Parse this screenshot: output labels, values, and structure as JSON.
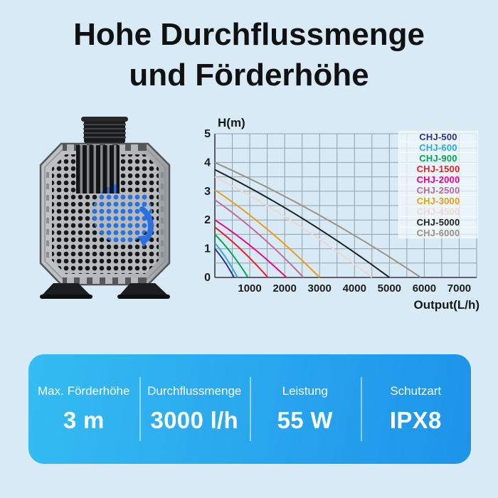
{
  "background_color": "#d7eaf5",
  "title": {
    "line1": "Hohe Durchflussmenge",
    "line2": "und Förderhöhe"
  },
  "pump": {
    "description": "submersible-pump-with-suction-feet",
    "body_color": "#b5b8ba",
    "hole_color": "#17181a",
    "impeller_color": "#2374e8",
    "arrow_color": "#2b6fe0"
  },
  "chart_data": {
    "type": "line",
    "title": "",
    "ylabel": "H(m)",
    "xlabel": "Output(L/h)",
    "xlim": [
      0,
      7500
    ],
    "ylim": [
      0,
      5
    ],
    "x_ticks": [
      1000,
      2000,
      3000,
      4000,
      5000,
      6000,
      7000
    ],
    "y_ticks": [
      0,
      1,
      2,
      3,
      4,
      5
    ],
    "grid": true,
    "grid_step_x": 500,
    "grid_step_y": 0.5,
    "grid_color": "#93a0aa",
    "axis_color": "#4a4f54",
    "legend_position": "top-right",
    "series": [
      {
        "name": "CHJ-500",
        "color": "#2e3192",
        "points": [
          [
            0,
            1.0
          ],
          [
            280,
            0.55
          ],
          [
            550,
            0
          ]
        ]
      },
      {
        "name": "CHJ-600",
        "color": "#29abe2",
        "points": [
          [
            0,
            1.2
          ],
          [
            330,
            0.66
          ],
          [
            650,
            0
          ]
        ]
      },
      {
        "name": "CHJ-900",
        "color": "#00a651",
        "points": [
          [
            0,
            1.5
          ],
          [
            480,
            0.83
          ],
          [
            950,
            0
          ]
        ]
      },
      {
        "name": "CHJ-1500",
        "color": "#ed1c24",
        "points": [
          [
            0,
            1.75
          ],
          [
            760,
            0.96
          ],
          [
            1520,
            0
          ]
        ]
      },
      {
        "name": "CHJ-2000",
        "color": "#ec008c",
        "points": [
          [
            0,
            2.0
          ],
          [
            1020,
            1.1
          ],
          [
            2050,
            0
          ]
        ]
      },
      {
        "name": "CHJ-2500",
        "color": "#c4679b",
        "points": [
          [
            0,
            2.7
          ],
          [
            1270,
            1.49
          ],
          [
            2540,
            0
          ]
        ]
      },
      {
        "name": "CHJ-3000",
        "color": "#ef9a16",
        "points": [
          [
            0,
            3.05
          ],
          [
            1500,
            1.68
          ],
          [
            3000,
            0
          ]
        ]
      },
      {
        "name": "CHJ-4500",
        "color": "#f2d6d0",
        "points": [
          [
            0,
            3.5
          ],
          [
            2250,
            1.93
          ],
          [
            4500,
            0
          ]
        ]
      },
      {
        "name": "CHJ-5000",
        "color": "#231f20",
        "points": [
          [
            0,
            3.75
          ],
          [
            2500,
            2.06
          ],
          [
            5000,
            0
          ]
        ]
      },
      {
        "name": "CHJ-6000",
        "color": "#9c9286",
        "points": [
          [
            0,
            4.0
          ],
          [
            2950,
            2.2
          ],
          [
            5900,
            0
          ]
        ]
      }
    ]
  },
  "specs": {
    "items": [
      {
        "label": "Max. Förderhöhe",
        "value": "3 m"
      },
      {
        "label": "Durchflussmenge",
        "value": "3000 l/h"
      },
      {
        "label": "Leistung",
        "value": "55 W"
      },
      {
        "label": "Schutzart",
        "value": "IPX8"
      }
    ]
  },
  "card": {
    "gradient_start": "#35bcf2",
    "gradient_end": "#1d93ea"
  }
}
